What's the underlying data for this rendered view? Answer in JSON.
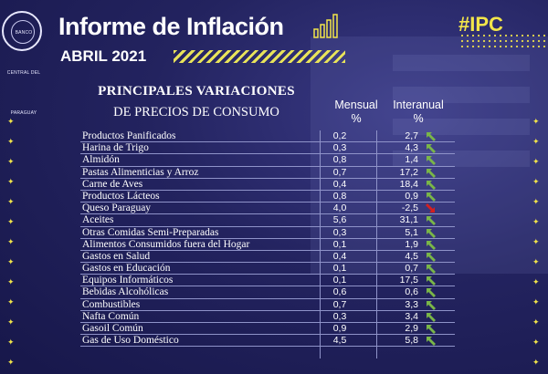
{
  "brand": {
    "logo_text": "BANCO CENTRAL DEL PARAGUAY"
  },
  "header": {
    "title": "Informe de Inflación",
    "period": "ABRIL 2021",
    "tag": "#IPC"
  },
  "section": {
    "heading_line1": "PRINCIPALES VARIACIONES",
    "heading_line2": "DE PRECIOS DE CONSUMO"
  },
  "columns": {
    "monthly_label": "Mensual",
    "monthly_unit": "%",
    "annual_label": "Interanual",
    "annual_unit": "%"
  },
  "colors": {
    "background": "#23235f",
    "accent_yellow": "#f2e54a",
    "up_arrow": "#7ab648",
    "down_arrow": "#d32020"
  },
  "items": [
    {
      "name": "Productos Panificados",
      "monthly": "0,2",
      "annual": "2,7",
      "trend": "up"
    },
    {
      "name": "Harina de Trigo",
      "monthly": "0,3",
      "annual": "4,3",
      "trend": "up"
    },
    {
      "name": "Almidón",
      "monthly": "0,8",
      "annual": "1,4",
      "trend": "up"
    },
    {
      "name": "Pastas Alimenticias y Arroz",
      "monthly": "0,7",
      "annual": "17,2",
      "trend": "up"
    },
    {
      "name": "Carne de Aves",
      "monthly": "0,4",
      "annual": "18,4",
      "trend": "up"
    },
    {
      "name": "Productos Lácteos",
      "monthly": "0,8",
      "annual": "0,9",
      "trend": "up"
    },
    {
      "name": "Queso Paraguay",
      "monthly": "4,0",
      "annual": "-2,5",
      "trend": "down"
    },
    {
      "name": "Aceites",
      "monthly": "5,6",
      "annual": "31,1",
      "trend": "up"
    },
    {
      "name": "Otras Comidas Semi-Preparadas",
      "monthly": "0,3",
      "annual": "5,1",
      "trend": "up"
    },
    {
      "name": "Alimentos Consumidos fuera del Hogar",
      "monthly": "0,1",
      "annual": "1,9",
      "trend": "up"
    },
    {
      "name": "Gastos en Salud",
      "monthly": "0,4",
      "annual": "4,5",
      "trend": "up"
    },
    {
      "name": "Gastos en Educación",
      "monthly": "0,1",
      "annual": "0,7",
      "trend": "up"
    },
    {
      "name": "Equipos Informáticos",
      "monthly": "0,1",
      "annual": "17,5",
      "trend": "up"
    },
    {
      "name": "Bebidas Alcohólicas",
      "monthly": "0,6",
      "annual": "0,6",
      "trend": "up"
    },
    {
      "name": "Combustibles",
      "monthly": "0,7",
      "annual": "3,3",
      "trend": "up"
    },
    {
      "name": "Nafta Común",
      "monthly": "0,3",
      "annual": "3,4",
      "trend": "up"
    },
    {
      "name": "Gasoil Común",
      "monthly": "0,9",
      "annual": "2,9",
      "trend": "up"
    },
    {
      "name": "Gas de Uso Doméstico",
      "monthly": "4,5",
      "annual": "5,8",
      "trend": "up"
    }
  ]
}
